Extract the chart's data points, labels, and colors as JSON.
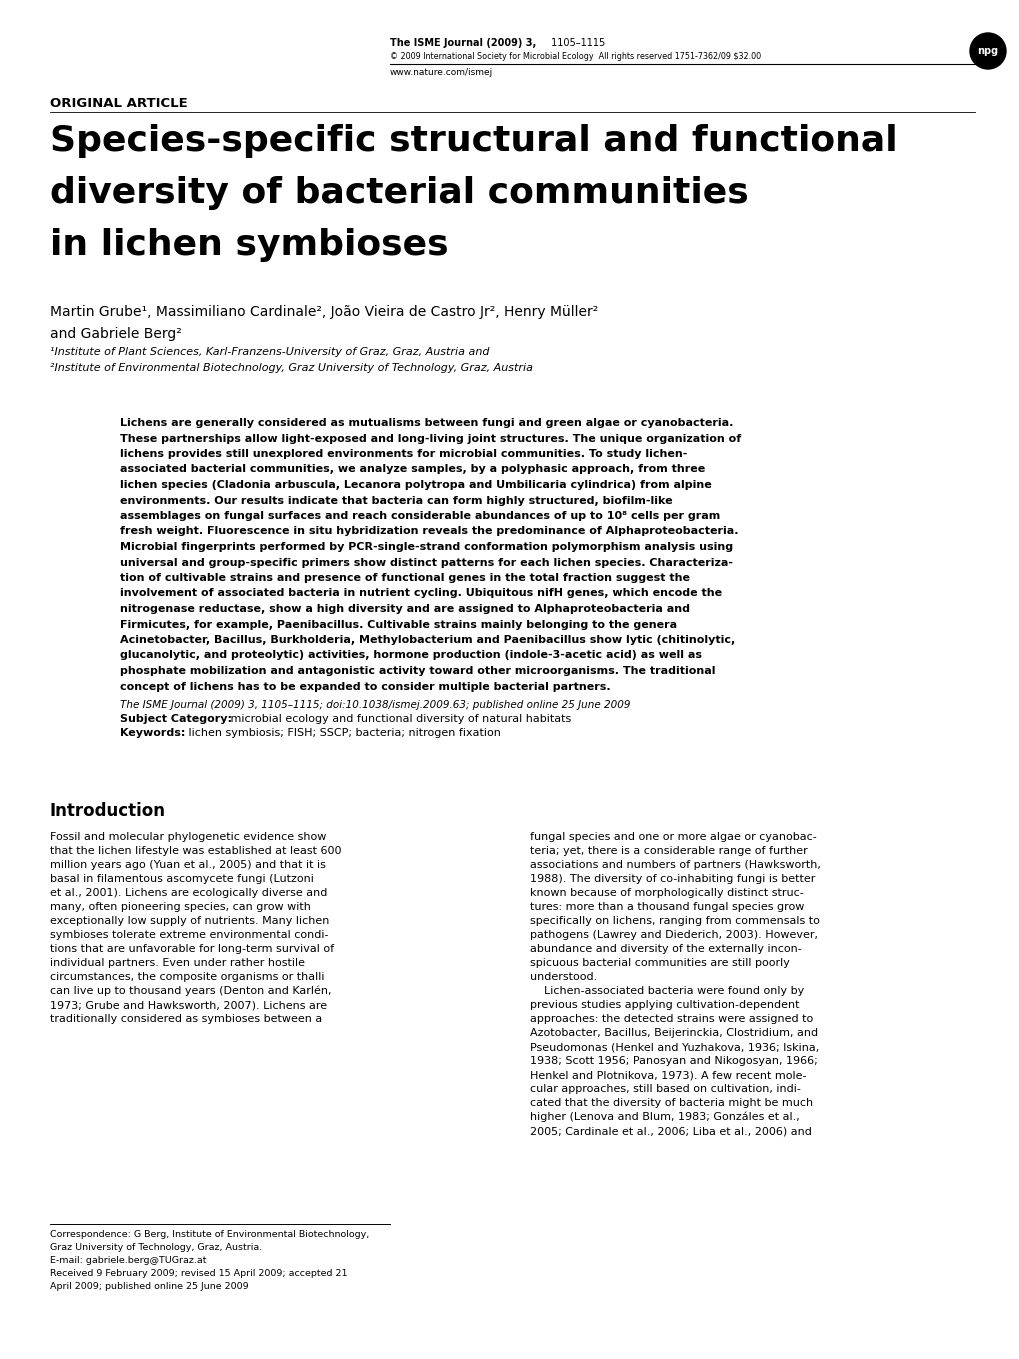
{
  "background_color": "#ffffff",
  "page_width": 10.2,
  "page_height": 13.59,
  "header": {
    "journal_bold": "The ISME Journal (2009) 3,",
    "journal_normal": " 1105–1115",
    "copyright": "© 2009 International Society for Microbial Ecology  All rights reserved 1751-7362/09 $32.00",
    "url": "www.nature.com/ismej",
    "logo_text": "npg"
  },
  "original_article": "ORIGINAL ARTICLE",
  "title_line1": "Species-specific structural and functional",
  "title_line2": "diversity of bacterial communities",
  "title_line3": "in lichen symbioses",
  "authors": "Martin Grube¹, Massimiliano Cardinale², João Vieira de Castro Jr², Henry Müller²",
  "authors2": "and Gabriele Berg²",
  "affil1": "¹Institute of Plant Sciences, Karl-Franzens-University of Graz, Graz, Austria and",
  "affil2": "²Institute of Environmental Biotechnology, Graz University of Technology, Graz, Austria",
  "abstract_lines": [
    "Lichens are generally considered as mutualisms between fungi and green algae or cyanobacteria.",
    "These partnerships allow light-exposed and long-living joint structures. The unique organization of",
    "lichens provides still unexplored environments for microbial communities. To study lichen-",
    "associated bacterial communities, we analyze samples, by a polyphasic approach, from three",
    "lichen species (Cladonia arbuscula, Lecanora polytropa and Umbilicaria cylindrica) from alpine",
    "environments. Our results indicate that bacteria can form highly structured, biofilm-like",
    "assemblages on fungal surfaces and reach considerable abundances of up to 10⁸ cells per gram",
    "fresh weight. Fluorescence in situ hybridization reveals the predominance of Alphaproteobacteria.",
    "Microbial fingerprints performed by PCR-single-strand conformation polymorphism analysis using",
    "universal and group-specific primers show distinct patterns for each lichen species. Characteriza-",
    "tion of cultivable strains and presence of functional genes in the total fraction suggest the",
    "involvement of associated bacteria in nutrient cycling. Ubiquitous nifH genes, which encode the",
    "nitrogenase reductase, show a high diversity and are assigned to Alphaproteobacteria and",
    "Firmicutes, for example, Paenibacillus. Cultivable strains mainly belonging to the genera",
    "Acinetobacter, Bacillus, Burkholderia, Methylobacterium and Paenibacillus show lytic (chitinolytic,",
    "glucanolytic, and proteolytic) activities, hormone production (indole-3-acetic acid) as well as",
    "phosphate mobilization and antagonistic activity toward other microorganisms. The traditional",
    "concept of lichens has to be expanded to consider multiple bacterial partners."
  ],
  "cite_line": "The ISME Journal (2009) 3, 1105–1115; doi:10.1038/ismej.2009.63; published online 25 June 2009",
  "subject_bold": "Subject Category: ",
  "subject_normal": " microbial ecology and functional diversity of natural habitats",
  "keywords_bold": "Keywords: ",
  "keywords_normal": " lichen symbiosis; FISH; SSCP; bacteria; nitrogen fixation",
  "intro_heading": "Introduction",
  "intro_col1": [
    "Fossil and molecular phylogenetic evidence show",
    "that the lichen lifestyle was established at least 600",
    "million years ago (Yuan et al., 2005) and that it is",
    "basal in filamentous ascomycete fungi (Lutzoni",
    "et al., 2001). Lichens are ecologically diverse and",
    "many, often pioneering species, can grow with",
    "exceptionally low supply of nutrients. Many lichen",
    "symbioses tolerate extreme environmental condi-",
    "tions that are unfavorable for long-term survival of",
    "individual partners. Even under rather hostile",
    "circumstances, the composite organisms or thalli",
    "can live up to thousand years (Denton and Karlén,",
    "1973; Grube and Hawksworth, 2007). Lichens are",
    "traditionally considered as symbioses between a"
  ],
  "intro_col2": [
    "fungal species and one or more algae or cyanobac-",
    "teria; yet, there is a considerable range of further",
    "associations and numbers of partners (Hawksworth,",
    "1988). The diversity of co-inhabiting fungi is better",
    "known because of morphologically distinct struc-",
    "tures: more than a thousand fungal species grow",
    "specifically on lichens, ranging from commensals to",
    "pathogens (Lawrey and Diederich, 2003). However,",
    "abundance and diversity of the externally incon-",
    "spicuous bacterial communities are still poorly",
    "understood.",
    "    Lichen-associated bacteria were found only by",
    "previous studies applying cultivation-dependent",
    "approaches: the detected strains were assigned to",
    "Azotobacter, Bacillus, Beijerinckia, Clostridium, and",
    "Pseudomonas (Henkel and Yuzhakova, 1936; Iskina,",
    "1938; Scott 1956; Panosyan and Nikogosyan, 1966;",
    "Henkel and Plotnikova, 1973). A few recent mole-",
    "cular approaches, still based on cultivation, indi-",
    "cated that the diversity of bacteria might be much",
    "higher (Lenova and Blum, 1983; Gonzáles et al.,",
    "2005; Cardinale et al., 2006; Liba et al., 2006) and"
  ],
  "footnote_lines": [
    "Correspondence: G Berg, Institute of Environmental Biotechnology,",
    "Graz University of Technology, Graz, Austria.",
    "E-mail: gabriele.berg@TUGraz.at",
    "Received 9 February 2009; revised 15 April 2009; accepted 21",
    "April 2009; published online 25 June 2009"
  ]
}
